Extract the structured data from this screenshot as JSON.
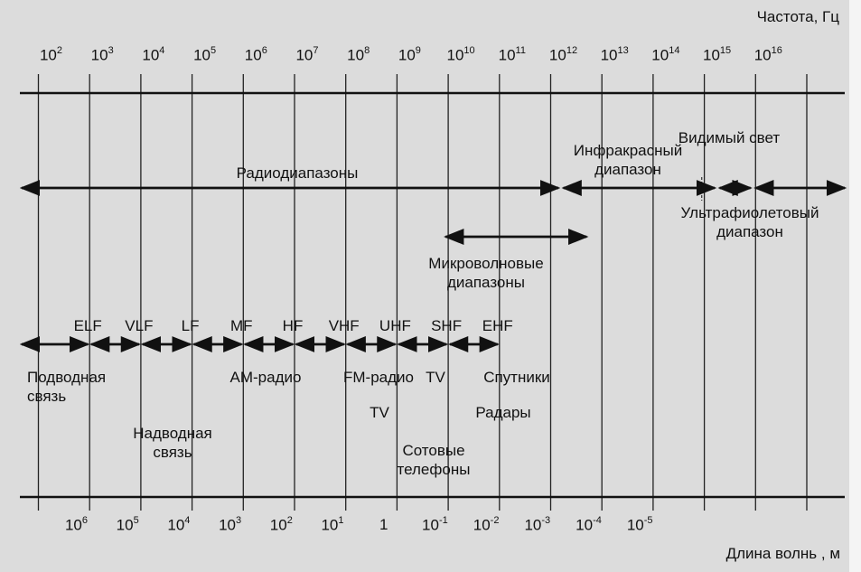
{
  "axis": {
    "frequency_title": "Частота, Гц",
    "wavelength_title": "Длина волнь , м"
  },
  "frequency_ticks": [
    {
      "base": "10",
      "exp": "2"
    },
    {
      "base": "10",
      "exp": "3"
    },
    {
      "base": "10",
      "exp": "4"
    },
    {
      "base": "10",
      "exp": "5"
    },
    {
      "base": "10",
      "exp": "6"
    },
    {
      "base": "10",
      "exp": "7"
    },
    {
      "base": "10",
      "exp": "8"
    },
    {
      "base": "10",
      "exp": "9"
    },
    {
      "base": "10",
      "exp": "10"
    },
    {
      "base": "10",
      "exp": "11"
    },
    {
      "base": "10",
      "exp": "12"
    },
    {
      "base": "10",
      "exp": "13"
    },
    {
      "base": "10",
      "exp": "14"
    },
    {
      "base": "10",
      "exp": "15"
    },
    {
      "base": "10",
      "exp": "16"
    }
  ],
  "wavelength_ticks": [
    {
      "base": "10",
      "exp": "6"
    },
    {
      "base": "10",
      "exp": "5"
    },
    {
      "base": "10",
      "exp": "4"
    },
    {
      "base": "10",
      "exp": "3"
    },
    {
      "base": "10",
      "exp": "2"
    },
    {
      "base": "10",
      "exp": "1"
    },
    {
      "base": "1",
      "exp": ""
    },
    {
      "base": "10",
      "exp": "-1"
    },
    {
      "base": "10",
      "exp": "-2"
    },
    {
      "base": "10",
      "exp": "-3"
    },
    {
      "base": "10",
      "exp": "-4"
    },
    {
      "base": "10",
      "exp": "-5"
    }
  ],
  "ranges": {
    "radio": "Радиодиапазоны",
    "visible": "Видимый свет",
    "infrared": "Инфракрасный диапазон",
    "ultraviolet": "Ультрафиолетовый диапазон",
    "microwave": "Микроволновые диапазоны"
  },
  "bands": [
    "ELF",
    "VLF",
    "LF",
    "MF",
    "HF",
    "VHF",
    "UHF",
    "SHF",
    "EHF"
  ],
  "applications": {
    "underwater": "Подводная связь",
    "surface": "Надводная связь",
    "am": "АМ-радио",
    "fm": "FM-радио",
    "tv_vhf": "TV",
    "tv_uhf": "TV",
    "cellular": "Сотовые телефоны",
    "satellites": "Спутники",
    "radars": "Радары"
  }
}
